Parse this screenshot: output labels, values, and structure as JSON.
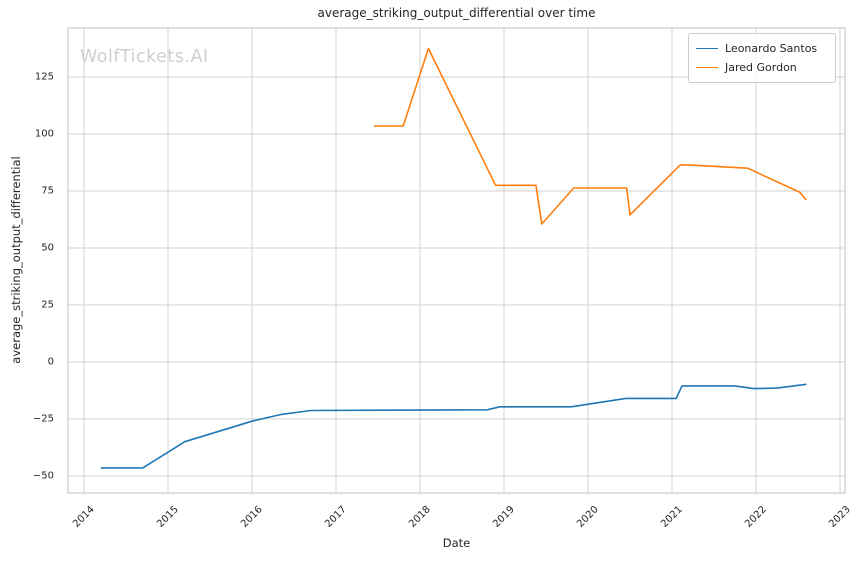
{
  "chart_data": {
    "type": "line",
    "title": "average_striking_output_differential over time",
    "xlabel": "Date",
    "ylabel": "average_striking_output_differential",
    "watermark": "WolfTickets.AI",
    "grid": true,
    "legend_position": "upper right",
    "xlim": [
      2013.81,
      2023.06
    ],
    "ylim": [
      -57.5,
      146.5
    ],
    "x_ticks": [
      {
        "label": "2014",
        "value": 2014
      },
      {
        "label": "2015",
        "value": 2015
      },
      {
        "label": "2016",
        "value": 2016
      },
      {
        "label": "2017",
        "value": 2017
      },
      {
        "label": "2018",
        "value": 2018
      },
      {
        "label": "2019",
        "value": 2019
      },
      {
        "label": "2020",
        "value": 2020
      },
      {
        "label": "2021",
        "value": 2021
      },
      {
        "label": "2022",
        "value": 2022
      },
      {
        "label": "2023",
        "value": 2023
      }
    ],
    "y_ticks": [
      {
        "label": "−50",
        "value": -50
      },
      {
        "label": "−25",
        "value": -25
      },
      {
        "label": "0",
        "value": 0
      },
      {
        "label": "25",
        "value": 25
      },
      {
        "label": "50",
        "value": 50
      },
      {
        "label": "75",
        "value": 75
      },
      {
        "label": "100",
        "value": 100
      },
      {
        "label": "125",
        "value": 125
      }
    ],
    "colors": {
      "grid": "#d2d2d2",
      "spine": "#cccccc",
      "text": "#262626",
      "watermark": "#cfcfcf",
      "background": "#ffffff",
      "legend_border": "#cccccc",
      "series_blue": "#1f77b4",
      "series_orange": "#ff7f0e"
    },
    "series": [
      {
        "name": "Leonardo Santos",
        "color": "#1f77b4",
        "points": [
          [
            2014.2,
            -46.5
          ],
          [
            2014.7,
            -46.5
          ],
          [
            2015.2,
            -35.0
          ],
          [
            2016.0,
            -26.0
          ],
          [
            2016.35,
            -23.0
          ],
          [
            2016.7,
            -21.3
          ],
          [
            2018.8,
            -21.0
          ],
          [
            2018.95,
            -19.7
          ],
          [
            2019.8,
            -19.7
          ],
          [
            2020.45,
            -16.0
          ],
          [
            2021.05,
            -16.0
          ],
          [
            2021.12,
            -10.5
          ],
          [
            2021.75,
            -10.5
          ],
          [
            2021.97,
            -11.7
          ],
          [
            2022.25,
            -11.5
          ],
          [
            2022.6,
            -9.8
          ]
        ]
      },
      {
        "name": "Jared Gordon",
        "color": "#ff7f0e",
        "points": [
          [
            2017.45,
            103.5
          ],
          [
            2017.8,
            103.5
          ],
          [
            2018.1,
            137.5
          ],
          [
            2018.9,
            77.5
          ],
          [
            2019.38,
            77.5
          ],
          [
            2019.45,
            60.5
          ],
          [
            2019.83,
            76.3
          ],
          [
            2020.46,
            76.3
          ],
          [
            2020.5,
            64.5
          ],
          [
            2021.1,
            86.5
          ],
          [
            2021.25,
            86.3
          ],
          [
            2021.9,
            85.0
          ],
          [
            2022.52,
            74.5
          ],
          [
            2022.6,
            71.0
          ]
        ]
      }
    ]
  }
}
